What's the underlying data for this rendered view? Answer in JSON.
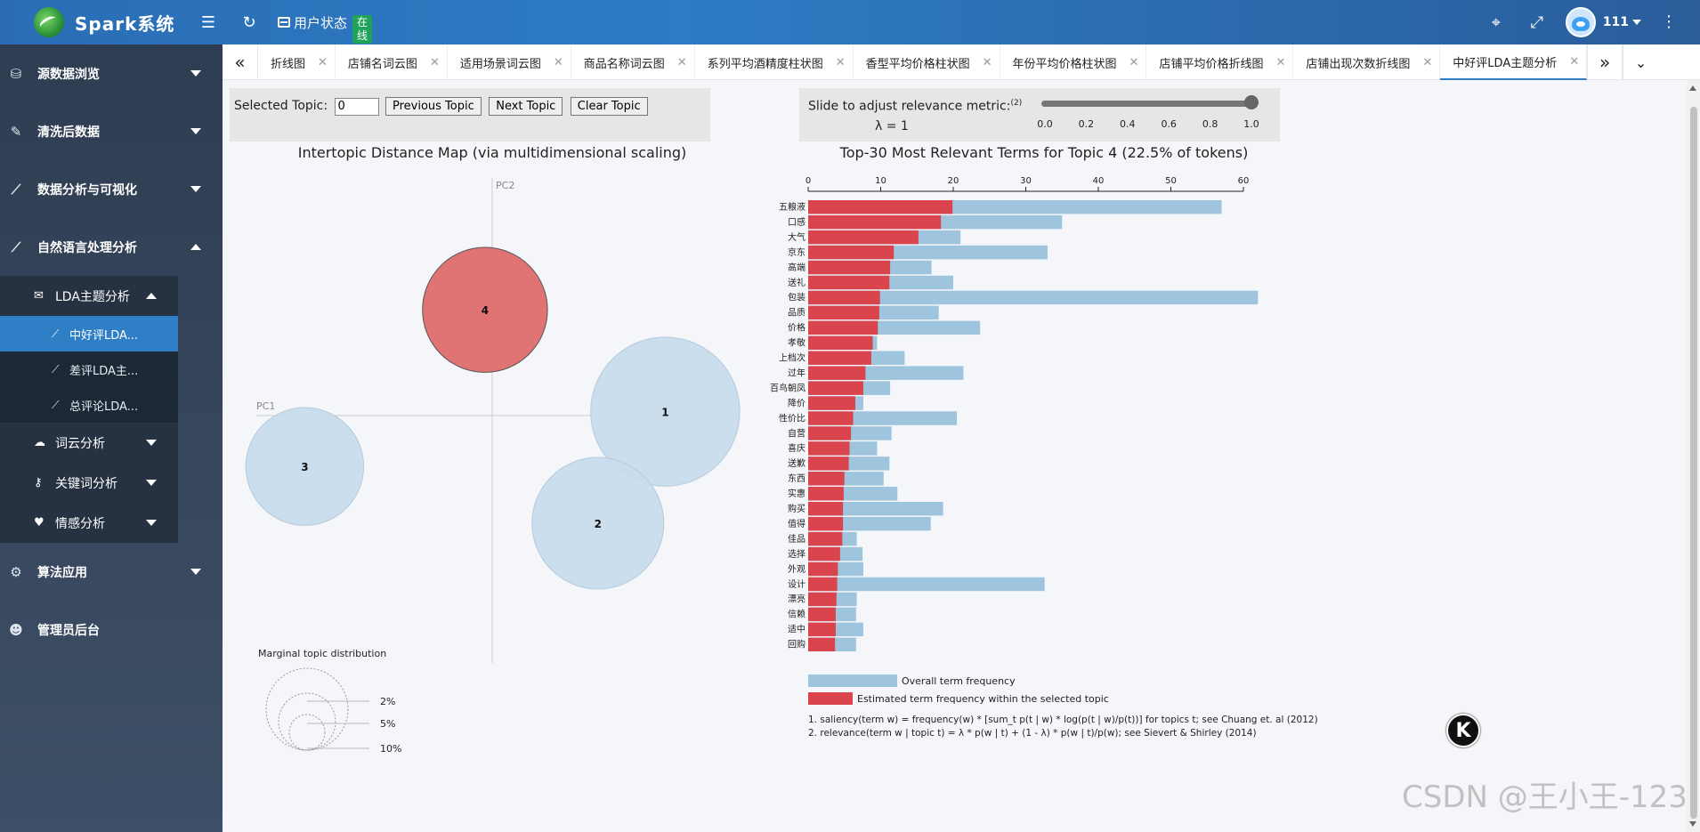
{
  "header": {
    "brand": "Spark系统",
    "user_status_label": "用户状态",
    "online_badge": "在线",
    "username": "111",
    "bg_color": "#2d7bc4"
  },
  "sidebar": {
    "items": [
      {
        "label": "源数据浏览",
        "icon": "database-icon",
        "expanded": false
      },
      {
        "label": "清洗后数据",
        "icon": "broom-icon",
        "expanded": false
      },
      {
        "label": "数据分析与可视化",
        "icon": "line-chart-icon",
        "expanded": false
      },
      {
        "label": "自然语言处理分析",
        "icon": "line-chart-icon",
        "expanded": true
      },
      {
        "label": "算法应用",
        "icon": "robot-icon",
        "expanded": false
      },
      {
        "label": "管理员后台",
        "icon": "admin-icon",
        "expanded": false
      }
    ],
    "nlp_sub": [
      {
        "label": "LDA主题分析",
        "icon": "comments-icon",
        "expanded": true
      },
      {
        "label": "词云分析",
        "icon": "cloud-icon",
        "expanded": false
      },
      {
        "label": "关键词分析",
        "icon": "key-icon",
        "expanded": false
      },
      {
        "label": "情感分析",
        "icon": "heart-icon",
        "expanded": false
      }
    ],
    "lda_leaves": [
      {
        "label": "中好评LDA...",
        "active": true
      },
      {
        "label": "差评LDA主...",
        "active": false
      },
      {
        "label": "总评论LDA...",
        "active": false
      }
    ]
  },
  "tabs": [
    {
      "label": "折线图",
      "active": false
    },
    {
      "label": "店铺名词云图",
      "active": false
    },
    {
      "label": "适用场景词云图",
      "active": false
    },
    {
      "label": "商品名称词云图",
      "active": false
    },
    {
      "label": "系列平均酒精度柱状图",
      "active": false
    },
    {
      "label": "香型平均价格柱状图",
      "active": false
    },
    {
      "label": "年份平均价格柱状图",
      "active": false
    },
    {
      "label": "店铺平均价格折线图",
      "active": false
    },
    {
      "label": "店铺出现次数折线图",
      "active": false
    },
    {
      "label": "中好评LDA主题分析",
      "active": true
    }
  ],
  "controls": {
    "selected_topic_label": "Selected Topic:",
    "selected_topic_value": "0",
    "prev_button": "Previous Topic",
    "next_button": "Next Topic",
    "clear_button": "Clear Topic",
    "slider_label": "Slide to adjust relevance metric:",
    "slider_footnote": "(2)",
    "lambda_text": "λ = 1",
    "lambda_value": 1,
    "slider_ticks": [
      "0.0",
      "0.2",
      "0.4",
      "0.6",
      "0.8",
      "1.0"
    ]
  },
  "chart_data": [
    {
      "type": "scatter",
      "title": "Intertopic Distance Map (via multidimensional scaling)",
      "xlabel": "PC1",
      "ylabel": "PC2",
      "topics": [
        {
          "id": "1",
          "pc1": 0.72,
          "pc2": 0.02,
          "share": 0.32,
          "selected": false
        },
        {
          "id": "2",
          "pc1": 0.44,
          "pc2": -0.55,
          "share": 0.25,
          "selected": false
        },
        {
          "id": "3",
          "pc1": -0.78,
          "pc2": -0.26,
          "share": 0.2,
          "selected": false
        },
        {
          "id": "4",
          "pc1": -0.03,
          "pc2": 0.54,
          "share": 0.225,
          "selected": true
        }
      ],
      "legend": {
        "title": "Marginal topic distribution",
        "levels": [
          "2%",
          "5%",
          "10%"
        ]
      },
      "colors": {
        "default": "#c6dbec",
        "selected": "#e07474"
      }
    },
    {
      "type": "bar",
      "title": "Top-30 Most Relevant Terms for Topic 4 (22.5% of tokens)",
      "xlim": [
        0,
        60
      ],
      "xticks": [
        "0",
        "10",
        "20",
        "30",
        "40",
        "50",
        "60"
      ],
      "categories": [
        "五粮液",
        "口感",
        "大气",
        "京东",
        "高端",
        "送礼",
        "包装",
        "品质",
        "价格",
        "孝敬",
        "上档次",
        "过年",
        "百鸟朝凤",
        "降价",
        "性价比",
        "自营",
        "喜庆",
        "送歉",
        "东西",
        "实惠",
        "购买",
        "值得",
        "佳品",
        "选择",
        "外观",
        "设计",
        "漂亮",
        "信赖",
        "适中",
        "回购"
      ],
      "series": [
        {
          "name": "Overall term frequency",
          "values": [
            57,
            35,
            21,
            33,
            17,
            20,
            62,
            18,
            23.7,
            9.5,
            13.3,
            21.4,
            11.3,
            7.6,
            20.5,
            11.5,
            9.5,
            11.2,
            10.4,
            12.3,
            18.6,
            16.9,
            6.7,
            7.5,
            7.6,
            32.6,
            6.7,
            6.6,
            7.6,
            6.6
          ]
        },
        {
          "name": "Estimated term frequency within the selected topic",
          "values": [
            19.9,
            18.3,
            15.2,
            11.8,
            11.3,
            11.2,
            9.9,
            9.8,
            9.6,
            8.9,
            8.7,
            7.9,
            7.6,
            6.5,
            6.2,
            5.9,
            5.7,
            5.6,
            5.0,
            4.9,
            4.8,
            4.8,
            4.7,
            4.4,
            4.1,
            4.0,
            3.9,
            3.8,
            3.8,
            3.7
          ]
        }
      ],
      "colors": {
        "overall": "#9ec4de",
        "topic": "#d9444d"
      },
      "footnotes": [
        "1. saliency(term w) = frequency(w) * [sum_t p(t | w) * log(p(t | w)/p(t))] for topics t; see Chuang et. al (2012)",
        "2. relevance(term w | topic t) = λ * p(w | t) + (1 - λ) * p(w | t)/p(w); see Sievert & Shirley (2014)"
      ]
    }
  ],
  "watermark": "CSDN @王小王-123",
  "floating_button": "K"
}
